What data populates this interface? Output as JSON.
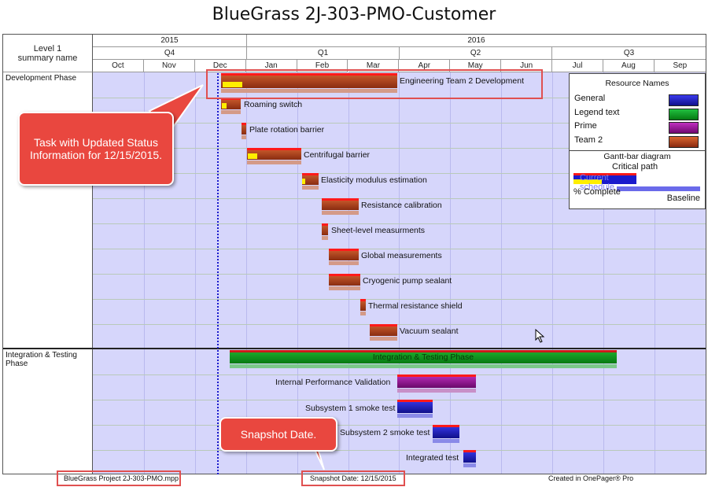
{
  "title": "BlueGrass 2J-303-PMO-Customer",
  "header": {
    "corner_label": "Level 1 summary name",
    "years": [
      "2015",
      "2016"
    ],
    "quarters": [
      "Q4",
      "Q1",
      "Q2",
      "Q3"
    ],
    "months": [
      "Oct",
      "Nov",
      "Dec",
      "Jan",
      "Feb",
      "Mar",
      "Apr",
      "May",
      "Jun",
      "Jul",
      "Aug",
      "Sep"
    ]
  },
  "sections": [
    {
      "label": "Development Phase"
    },
    {
      "label": "Integration & Testing Phase"
    }
  ],
  "tasks": {
    "dev_summary": "Engineering Team 2 Development",
    "t1": "Roaming switch",
    "t2": "Plate rotation barrier",
    "t3": "Centrifugal barrier",
    "t4": "Elasticity modulus estimation",
    "t5": "Resistance calibration",
    "t6": "Sheet-level measurments",
    "t7": "Global measurements",
    "t8": "Cryogenic pump sealant",
    "t9": "Thermal resistance shield",
    "t10": "Vacuum sealant",
    "int_summary": "Integration & Testing Phase",
    "i1": "Internal Performance Validation",
    "i2": "Subsystem 1 smoke test",
    "i3": "Subsystem 2 smoke test",
    "i4": "Integrated test"
  },
  "legend": {
    "heading": "Resource Names",
    "items": [
      {
        "label": "General",
        "color": "#1a1acc"
      },
      {
        "label": "Legend text",
        "color": "#0a9a1a"
      },
      {
        "label": "Prime",
        "color": "#9a109a"
      },
      {
        "label": "Team 2",
        "color": "#b8451f"
      }
    ],
    "gantt_heading": "Gantt-bar diagram",
    "critical_path": "Critical path",
    "current_schedule": "Current schedule",
    "percent_complete": "% Complete",
    "baseline": "Baseline"
  },
  "callouts": {
    "status": "Task with Updated Status Information for 12/15/2015.",
    "snapshot": "Snapshot Date."
  },
  "footer": {
    "file": "BlueGrass Project 2J-303-PMO.mpp",
    "snapshot": "Snapshot Date: 12/15/2015",
    "created": "Created in OnePager® Pro"
  },
  "colors": {
    "plot_bg": "#d6d6fb",
    "team2": "#b8451f",
    "legend_text": "#0a9a1a",
    "prime": "#9a109a",
    "general": "#1a1acc",
    "critical": "#ff1a1a",
    "percent": "#ffee00",
    "callout": "#e9473f"
  }
}
